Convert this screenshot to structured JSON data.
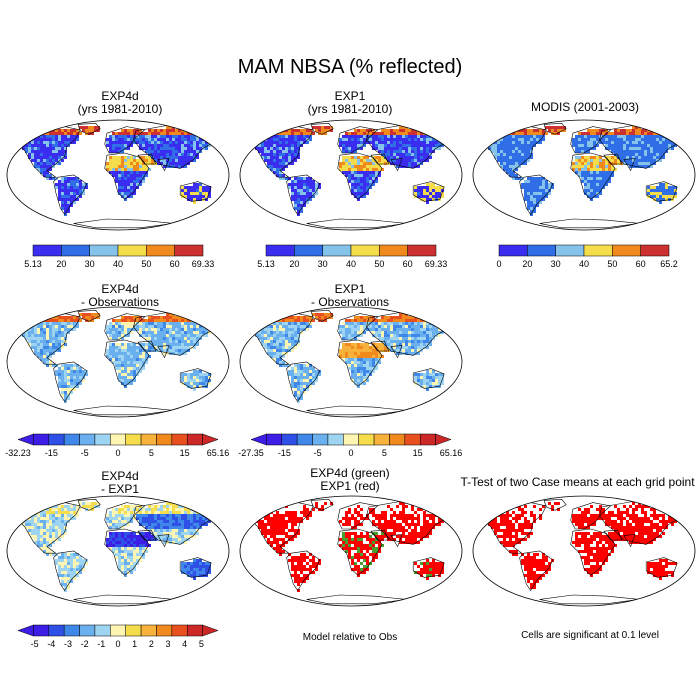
{
  "title": "MAM NBSA (% reflected)",
  "panels": [
    {
      "id": "exp4d",
      "title": [
        "EXP4d",
        "(yrs 1981-2010)"
      ],
      "kind": "albedo"
    },
    {
      "id": "exp1",
      "title": [
        "EXP1",
        "(yrs 1981-2010)"
      ],
      "kind": "albedo"
    },
    {
      "id": "modis",
      "title": [
        "MODIS (2001-2003)"
      ],
      "kind": "albedo"
    },
    {
      "id": "exp4d-obs",
      "title": [
        "EXP4d",
        "- Observations"
      ],
      "kind": "diff"
    },
    {
      "id": "exp1-obs",
      "title": [
        "EXP1",
        "- Observations"
      ],
      "kind": "diff"
    },
    {
      "id": "exp4d-exp1",
      "title": [
        "EXP4d",
        "- EXP1"
      ],
      "kind": "diff2"
    },
    {
      "id": "model-rel-obs",
      "title": [
        "EXP4d (green)",
        "EXP1 (red)"
      ],
      "kind": "sig"
    },
    {
      "id": "ttest",
      "title": [
        "T-Test of two Case means at each grid point"
      ],
      "kind": "sig"
    }
  ],
  "notes": {
    "model_relative": "Model relative to Obs",
    "significance": "Cells are significant at 0.1 level"
  },
  "chart_data": {
    "type": "heatmap",
    "colorbars": [
      {
        "id": "cb-exp4d",
        "colors": [
          "#3b2df0",
          "#2f6ee6",
          "#85c3ea",
          "#f5dc4a",
          "#f08a1d",
          "#cc3030"
        ],
        "labels": [
          "5.13",
          "20",
          "30",
          "40",
          "50",
          "60",
          "69.33"
        ]
      },
      {
        "id": "cb-exp1",
        "colors": [
          "#3b2df0",
          "#2f6ee6",
          "#85c3ea",
          "#f5dc4a",
          "#f08a1d",
          "#cc3030"
        ],
        "labels": [
          "5.13",
          "20",
          "30",
          "40",
          "50",
          "60",
          "69.33"
        ]
      },
      {
        "id": "cb-modis",
        "colors": [
          "#3b2df0",
          "#2f6ee6",
          "#85c3ea",
          "#f5dc4a",
          "#f08a1d",
          "#cc3030"
        ],
        "labels": [
          "0",
          "20",
          "30",
          "40",
          "50",
          "60",
          "65.2"
        ]
      },
      {
        "id": "cb-exp4d-obs",
        "colors": [
          "#3c1ee6",
          "#2f50e6",
          "#3f88ea",
          "#6ab0ee",
          "#9dd4f2",
          "#fff5b3",
          "#f5dc4a",
          "#f6b23a",
          "#f08a1d",
          "#e85020",
          "#cc2828"
        ],
        "labels": [
          "-32.23",
          "",
          "-15",
          "",
          "-5",
          "",
          "0",
          "",
          "5",
          "",
          "15",
          "",
          "65.16"
        ]
      },
      {
        "id": "cb-exp1-obs",
        "colors": [
          "#3c1ee6",
          "#2f50e6",
          "#3f88ea",
          "#6ab0ee",
          "#9dd4f2",
          "#fff5b3",
          "#f5dc4a",
          "#f6b23a",
          "#f08a1d",
          "#e85020",
          "#cc2828"
        ],
        "labels": [
          "-27.35",
          "",
          "-15",
          "",
          "-5",
          "",
          "0",
          "",
          "5",
          "",
          "15",
          "",
          "65.16"
        ]
      },
      {
        "id": "cb-exp4d-exp1",
        "colors": [
          "#3c1ee6",
          "#2f50e6",
          "#3f88ea",
          "#6ab0ee",
          "#9dd4f2",
          "#fff5b3",
          "#f5dc4a",
          "#f6b23a",
          "#f08a1d",
          "#e85020",
          "#cc2828"
        ],
        "labels": [
          "",
          "-5",
          "-4",
          "-3",
          "-2",
          "-1",
          "0",
          "1",
          "2",
          "3",
          "4",
          "5",
          ""
        ]
      }
    ]
  }
}
